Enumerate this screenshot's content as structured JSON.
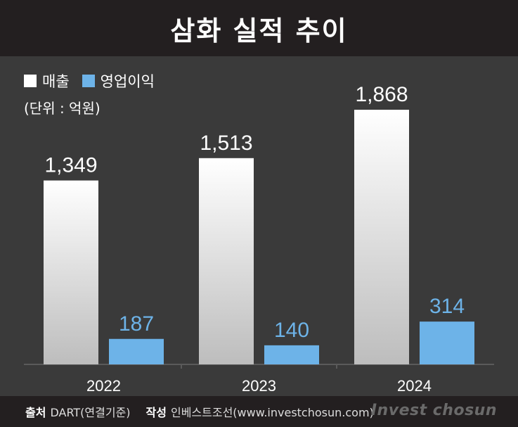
{
  "title": "삼화 실적 추이",
  "legend": [
    {
      "label": "매출",
      "color": "#ffffff"
    },
    {
      "label": "영업이익",
      "color": "#6db3e8"
    }
  ],
  "unit": "(단위 : 억원)",
  "chart_data": {
    "type": "bar",
    "categories": [
      "2022",
      "2023",
      "2024"
    ],
    "series": [
      {
        "name": "매출",
        "values": [
          1349,
          1513,
          1868
        ],
        "labels": [
          "1,349",
          "1,513",
          "1,868"
        ],
        "color": "#ffffff"
      },
      {
        "name": "영업이익",
        "values": [
          187,
          140,
          314
        ],
        "labels": [
          "187",
          "140",
          "314"
        ],
        "color": "#6db3e8"
      }
    ],
    "ylim": [
      0,
      1868
    ],
    "grid": false
  },
  "footer": {
    "source_label": "출처",
    "source_text": "DART(연결기준)",
    "author_label": "작성",
    "author_text": "인베스트조선(www.investchosun.com)",
    "brand": "Invest chosun"
  }
}
